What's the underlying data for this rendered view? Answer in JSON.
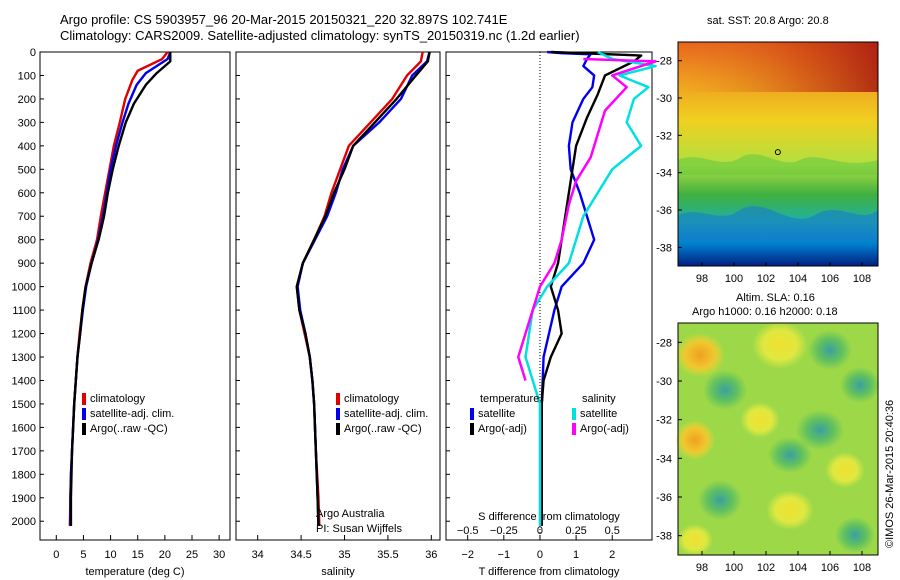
{
  "header": {
    "line1": "Argo profile: CS 5903957_96 20-Mar-2015 20150321_220 32.897S 102.741E",
    "line2": "Climatology: CARS2009. Satellite-adjusted climatology: synTS_20150319.nc (1.2d earlier)"
  },
  "colors": {
    "climatology": "#e00000",
    "satellite": "#0000ee",
    "argo": "#000000",
    "sat_salinity": "#00e0e0",
    "argo_salinity": "#ff00ff"
  },
  "chart_data": [
    {
      "type": "line",
      "xlabel": "temperature (deg C)",
      "ylabel": "",
      "xlim": [
        -3,
        32
      ],
      "ylim": [
        2080,
        0
      ],
      "x_ticks": [
        0,
        5,
        10,
        15,
        20,
        25,
        30
      ],
      "y_ticks": [
        0,
        100,
        200,
        300,
        400,
        500,
        600,
        700,
        800,
        900,
        1000,
        1100,
        1200,
        1300,
        1400,
        1500,
        1600,
        1700,
        1800,
        1900,
        2000
      ],
      "legend": [
        "climatology",
        "satellite-adj. clim.",
        "Argo(..raw -QC)"
      ],
      "series": [
        {
          "name": "climatology",
          "color": "#e00000",
          "points": [
            [
              20.5,
              0
            ],
            [
              19.5,
              30
            ],
            [
              15,
              80
            ],
            [
              14,
              120
            ],
            [
              12.7,
              200
            ],
            [
              11.7,
              300
            ],
            [
              10.6,
              400
            ],
            [
              9.8,
              500
            ],
            [
              9,
              600
            ],
            [
              8.2,
              700
            ],
            [
              7.5,
              800
            ],
            [
              6.3,
              900
            ],
            [
              5.4,
              1000
            ],
            [
              4.8,
              1100
            ],
            [
              4.3,
              1200
            ],
            [
              3.9,
              1300
            ],
            [
              3.6,
              1400
            ],
            [
              3.3,
              1500
            ],
            [
              3.1,
              1600
            ],
            [
              2.9,
              1700
            ],
            [
              2.7,
              1800
            ],
            [
              2.6,
              1900
            ],
            [
              2.5,
              2020
            ]
          ]
        },
        {
          "name": "satellite-adj. clim.",
          "color": "#0000ee",
          "points": [
            [
              21,
              0
            ],
            [
              20.5,
              30
            ],
            [
              16.5,
              90
            ],
            [
              14.8,
              140
            ],
            [
              13.3,
              220
            ],
            [
              12.2,
              300
            ],
            [
              11,
              400
            ],
            [
              10,
              500
            ],
            [
              9.3,
              600
            ],
            [
              8.6,
              700
            ],
            [
              7.7,
              800
            ],
            [
              6.5,
              900
            ],
            [
              5.5,
              1000
            ],
            [
              4.9,
              1100
            ],
            [
              4.4,
              1200
            ],
            [
              3.9,
              1300
            ],
            [
              3.6,
              1400
            ],
            [
              3.3,
              1500
            ],
            [
              3.1,
              1600
            ],
            [
              2.9,
              1700
            ],
            [
              2.7,
              1800
            ],
            [
              2.6,
              1900
            ],
            [
              2.6,
              2020
            ]
          ]
        },
        {
          "name": "Argo(..raw -QC)",
          "color": "#000000",
          "points": [
            [
              21,
              0
            ],
            [
              21,
              40
            ],
            [
              18.5,
              90
            ],
            [
              16.5,
              140
            ],
            [
              14.3,
              220
            ],
            [
              12.8,
              300
            ],
            [
              11.5,
              400
            ],
            [
              10.4,
              500
            ],
            [
              9.5,
              600
            ],
            [
              8.8,
              700
            ],
            [
              7.8,
              800
            ],
            [
              6.5,
              900
            ],
            [
              5.4,
              1000
            ],
            [
              4.8,
              1100
            ],
            [
              4.4,
              1200
            ],
            [
              3.9,
              1300
            ],
            [
              3.6,
              1400
            ],
            [
              3.3,
              1500
            ],
            [
              3.1,
              1600
            ],
            [
              2.9,
              1700
            ],
            [
              2.8,
              1800
            ],
            [
              2.7,
              1900
            ],
            [
              2.7,
              2020
            ]
          ]
        }
      ]
    },
    {
      "type": "line",
      "xlabel": "salinity",
      "ylabel": "",
      "xlim": [
        33.75,
        36.1
      ],
      "ylim": [
        2080,
        0
      ],
      "x_ticks": [
        34,
        34.5,
        35,
        35.5,
        36
      ],
      "legend": [
        "climatology",
        "satellite-adj. clim.",
        "Argo(..raw -QC)"
      ],
      "series": [
        {
          "name": "climatology",
          "color": "#e00000",
          "points": [
            [
              35.9,
              0
            ],
            [
              35.88,
              40
            ],
            [
              35.72,
              100
            ],
            [
              35.55,
              200
            ],
            [
              35.3,
              300
            ],
            [
              35.05,
              400
            ],
            [
              34.95,
              500
            ],
            [
              34.85,
              600
            ],
            [
              34.77,
              700
            ],
            [
              34.65,
              800
            ],
            [
              34.52,
              900
            ],
            [
              34.45,
              1000
            ],
            [
              34.48,
              1100
            ],
            [
              34.54,
              1200
            ],
            [
              34.6,
              1300
            ],
            [
              34.63,
              1400
            ],
            [
              34.65,
              1500
            ],
            [
              34.67,
              1700
            ],
            [
              34.7,
              1900
            ],
            [
              34.71,
              2020
            ]
          ]
        },
        {
          "name": "satellite-adj. clim.",
          "color": "#0000ee",
          "points": [
            [
              35.98,
              0
            ],
            [
              35.95,
              40
            ],
            [
              35.78,
              100
            ],
            [
              35.65,
              200
            ],
            [
              35.4,
              300
            ],
            [
              35.1,
              400
            ],
            [
              34.98,
              500
            ],
            [
              34.9,
              600
            ],
            [
              34.8,
              700
            ],
            [
              34.66,
              800
            ],
            [
              34.52,
              900
            ],
            [
              34.46,
              1000
            ],
            [
              34.49,
              1100
            ],
            [
              34.55,
              1200
            ],
            [
              34.6,
              1300
            ],
            [
              34.63,
              1400
            ],
            [
              34.65,
              1500
            ],
            [
              34.67,
              1700
            ],
            [
              34.69,
              1900
            ],
            [
              34.7,
              2020
            ]
          ]
        },
        {
          "name": "Argo(..raw -QC)",
          "color": "#000000",
          "points": [
            [
              35.98,
              0
            ],
            [
              35.96,
              40
            ],
            [
              35.8,
              110
            ],
            [
              35.6,
              200
            ],
            [
              35.35,
              300
            ],
            [
              35.1,
              400
            ],
            [
              35.0,
              500
            ],
            [
              34.88,
              600
            ],
            [
              34.78,
              700
            ],
            [
              34.65,
              800
            ],
            [
              34.52,
              900
            ],
            [
              34.45,
              1000
            ],
            [
              34.48,
              1100
            ],
            [
              34.55,
              1200
            ],
            [
              34.6,
              1300
            ],
            [
              34.63,
              1400
            ],
            [
              34.65,
              1500
            ],
            [
              34.67,
              1700
            ],
            [
              34.69,
              1900
            ],
            [
              34.7,
              2020
            ]
          ]
        }
      ],
      "annotation": [
        "Argo Australia",
        "PI: Susan Wijffels"
      ]
    },
    {
      "type": "line",
      "xlabel": "T difference from climatology",
      "x2label": "S difference from climatology",
      "xlim": [
        -2.6,
        3.1
      ],
      "x_ticks": [
        -2,
        -1,
        0,
        1,
        2
      ],
      "x_tick_labels": [
        "−2",
        "−1",
        "0",
        "1",
        "2"
      ],
      "x2_ticks": [
        -0.5,
        -0.25,
        0,
        0.25,
        0.5
      ],
      "x2_tick_labels": [
        "−0.5",
        "−0.25",
        "0",
        "0.25",
        "0.5"
      ],
      "ylim": [
        2080,
        0
      ],
      "legend_headers": [
        "temperature",
        "salinity"
      ],
      "legend": [
        "satellite",
        "Argo(-adj)",
        "satellite",
        "Argo(-adj)"
      ],
      "series": [
        {
          "name": "satellite",
          "group": "temperature",
          "color": "#0000ee",
          "points": [
            [
              0.2,
              0
            ],
            [
              0.6,
              5
            ],
            [
              1.4,
              10
            ],
            [
              1.3,
              30
            ],
            [
              1.2,
              60
            ],
            [
              1.5,
              100
            ],
            [
              1.45,
              150
            ],
            [
              1.2,
              200
            ],
            [
              0.9,
              300
            ],
            [
              0.8,
              400
            ],
            [
              0.85,
              500
            ],
            [
              1.1,
              600
            ],
            [
              1.3,
              700
            ],
            [
              1.5,
              800
            ],
            [
              1.2,
              900
            ],
            [
              0.6,
              1000
            ],
            [
              0.4,
              1100
            ],
            [
              0.25,
              1200
            ],
            [
              0.1,
              1300
            ],
            [
              0.05,
              1500
            ],
            [
              0.05,
              2020
            ]
          ]
        },
        {
          "name": "Argo(-adj)",
          "group": "temperature",
          "color": "#000000",
          "points": [
            [
              0.3,
              0
            ],
            [
              2.8,
              15
            ],
            [
              2.6,
              40
            ],
            [
              1.8,
              100
            ],
            [
              1.6,
              180
            ],
            [
              1.3,
              280
            ],
            [
              1.0,
              400
            ],
            [
              0.9,
              500
            ],
            [
              0.7,
              700
            ],
            [
              0.6,
              800
            ],
            [
              0.5,
              900
            ],
            [
              0.3,
              1000
            ],
            [
              0.5,
              1100
            ],
            [
              0.6,
              1200
            ],
            [
              0.3,
              1300
            ],
            [
              0.1,
              1400
            ],
            [
              0.05,
              1500
            ],
            [
              0.05,
              2020
            ]
          ]
        },
        {
          "name": "satellite",
          "group": "salinity",
          "color": "#00e0e0",
          "points": [
            [
              0.4,
              0
            ],
            [
              0.5,
              30
            ],
            [
              0.8,
              60
            ],
            [
              0.55,
              100
            ],
            [
              0.75,
              150
            ],
            [
              0.65,
              200
            ],
            [
              0.6,
              300
            ],
            [
              0.7,
              400
            ],
            [
              0.5,
              500
            ],
            [
              0.3,
              700
            ],
            [
              0.2,
              900
            ],
            [
              0.05,
              1000
            ],
            [
              -0.05,
              1100
            ],
            [
              -0.1,
              1300
            ],
            [
              0.0,
              1500
            ],
            [
              0.0,
              2020
            ]
          ]
        },
        {
          "name": "Argo(-adj)",
          "group": "salinity",
          "color": "#ff00ff",
          "points": [
            [
              0.3,
              30
            ],
            [
              0.8,
              40
            ],
            [
              0.7,
              60
            ],
            [
              0.5,
              100
            ],
            [
              0.6,
              150
            ],
            [
              0.45,
              250
            ],
            [
              0.4,
              350
            ],
            [
              0.35,
              450
            ],
            [
              0.25,
              550
            ],
            [
              0.2,
              650
            ],
            [
              0.15,
              800
            ],
            [
              0.1,
              900
            ],
            [
              0.0,
              1000
            ],
            [
              -0.1,
              1200
            ],
            [
              -0.15,
              1300
            ],
            [
              -0.1,
              1400
            ]
          ]
        }
      ]
    }
  ],
  "maps": [
    {
      "title": "sat. SST: 20.8 Argo: 20.8",
      "x_ticks": [
        98,
        100,
        102,
        104,
        106,
        108
      ],
      "y_ticks": [
        -28,
        -30,
        -32,
        -34,
        -36,
        -38
      ],
      "lon_range": [
        96.5,
        109
      ],
      "lat_range": [
        -39,
        -27
      ],
      "argo_lon": 102.741,
      "argo_lat": -32.897
    },
    {
      "title_line1": "Altim. SLA: 0.16",
      "title_line2": "Argo h1000: 0.16 h2000: 0.18",
      "x_ticks": [
        98,
        100,
        102,
        104,
        106,
        108
      ],
      "y_ticks": [
        -28,
        -30,
        -32,
        -34,
        -36,
        -38
      ],
      "lon_range": [
        96.5,
        109
      ],
      "lat_range": [
        -39,
        -27
      ]
    }
  ],
  "credit": "©IMOS 26-Mar-2015 20:40:36"
}
